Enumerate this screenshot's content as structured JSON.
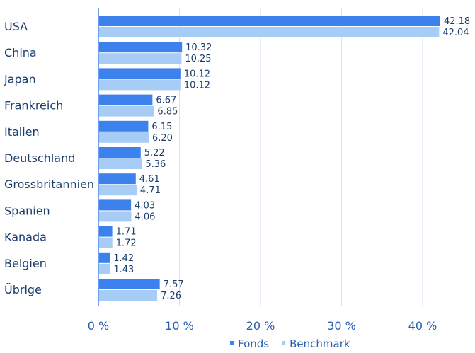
{
  "chart_data": {
    "type": "bar",
    "orientation": "horizontal",
    "categories": [
      "USA",
      "China",
      "Japan",
      "Frankreich",
      "Italien",
      "Deutschland",
      "Grossbritannien",
      "Spanien",
      "Kanada",
      "Belgien",
      "Übrige"
    ],
    "series": [
      {
        "name": "Fonds",
        "color": "#3d82ec",
        "values": [
          42.18,
          10.32,
          10.12,
          6.67,
          6.15,
          5.22,
          4.61,
          4.03,
          1.71,
          1.42,
          7.57
        ],
        "labels": [
          "42.18",
          "10.32",
          "10.12",
          "6.67",
          "6.15",
          "5.22",
          "4.61",
          "4.03",
          "1.71",
          "1.42",
          "7.57"
        ]
      },
      {
        "name": "Benchmark",
        "color": "#a7cdf6",
        "values": [
          42.04,
          10.25,
          10.12,
          6.85,
          6.2,
          5.36,
          4.71,
          4.06,
          1.72,
          1.43,
          7.26
        ],
        "labels": [
          "42.04",
          "10.25",
          "10.12",
          "6.85",
          "6.20",
          "5.36",
          "4.71",
          "4.06",
          "1.72",
          "1.43",
          "7.26"
        ]
      }
    ],
    "xlim": [
      0,
      46
    ],
    "xticks": [
      0,
      10,
      20,
      30,
      40
    ],
    "xtick_labels": [
      "0 %",
      "10 %",
      "20 %",
      "30 %",
      "40 %"
    ],
    "grid": true,
    "legend_position": "bottom-right"
  }
}
